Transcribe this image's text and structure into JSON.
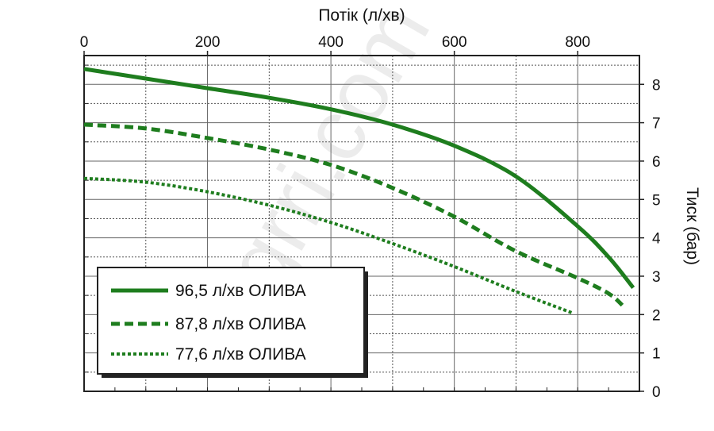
{
  "chart_data": {
    "type": "line",
    "xlabel": "Потік (л/хв)",
    "ylabel": "Тиск (бар)",
    "xlim": [
      0,
      900
    ],
    "ylim": [
      0,
      8.75
    ],
    "x_ticks": [
      "0",
      "200",
      "400",
      "600",
      "800"
    ],
    "x_tick_values": [
      0,
      200,
      400,
      600,
      800
    ],
    "y_ticks": [
      "0",
      "1",
      "2",
      "3",
      "4",
      "5",
      "6",
      "7",
      "8"
    ],
    "y_tick_values": [
      0,
      1,
      2,
      3,
      4,
      5,
      6,
      7,
      8
    ],
    "x_axis_position": "top",
    "y_axis_position": "right",
    "grid": true,
    "legend_position": "bottom-left",
    "watermark": "agrri.com",
    "series": [
      {
        "name": "96,5 л/хв ОЛИВА",
        "style": "solid",
        "color": "#1e7d1e",
        "x": [
          0,
          100,
          200,
          300,
          400,
          500,
          600,
          700,
          800,
          850,
          890
        ],
        "y": [
          8.4,
          8.15,
          7.9,
          7.65,
          7.35,
          6.95,
          6.4,
          5.6,
          4.3,
          3.5,
          2.7
        ]
      },
      {
        "name": "87,8 л/хв ОЛИВА",
        "style": "dashed",
        "color": "#1e7d1e",
        "x": [
          0,
          100,
          200,
          300,
          400,
          500,
          600,
          700,
          800,
          850,
          875
        ],
        "y": [
          6.95,
          6.85,
          6.6,
          6.3,
          5.9,
          5.3,
          4.55,
          3.65,
          2.95,
          2.55,
          2.2
        ]
      },
      {
        "name": "77,6 л/хв ОЛИВА",
        "style": "dotted",
        "color": "#1e7d1e",
        "x": [
          0,
          100,
          200,
          300,
          400,
          500,
          600,
          700,
          790
        ],
        "y": [
          5.55,
          5.45,
          5.2,
          4.85,
          4.4,
          3.85,
          3.25,
          2.6,
          2.05
        ]
      }
    ]
  }
}
